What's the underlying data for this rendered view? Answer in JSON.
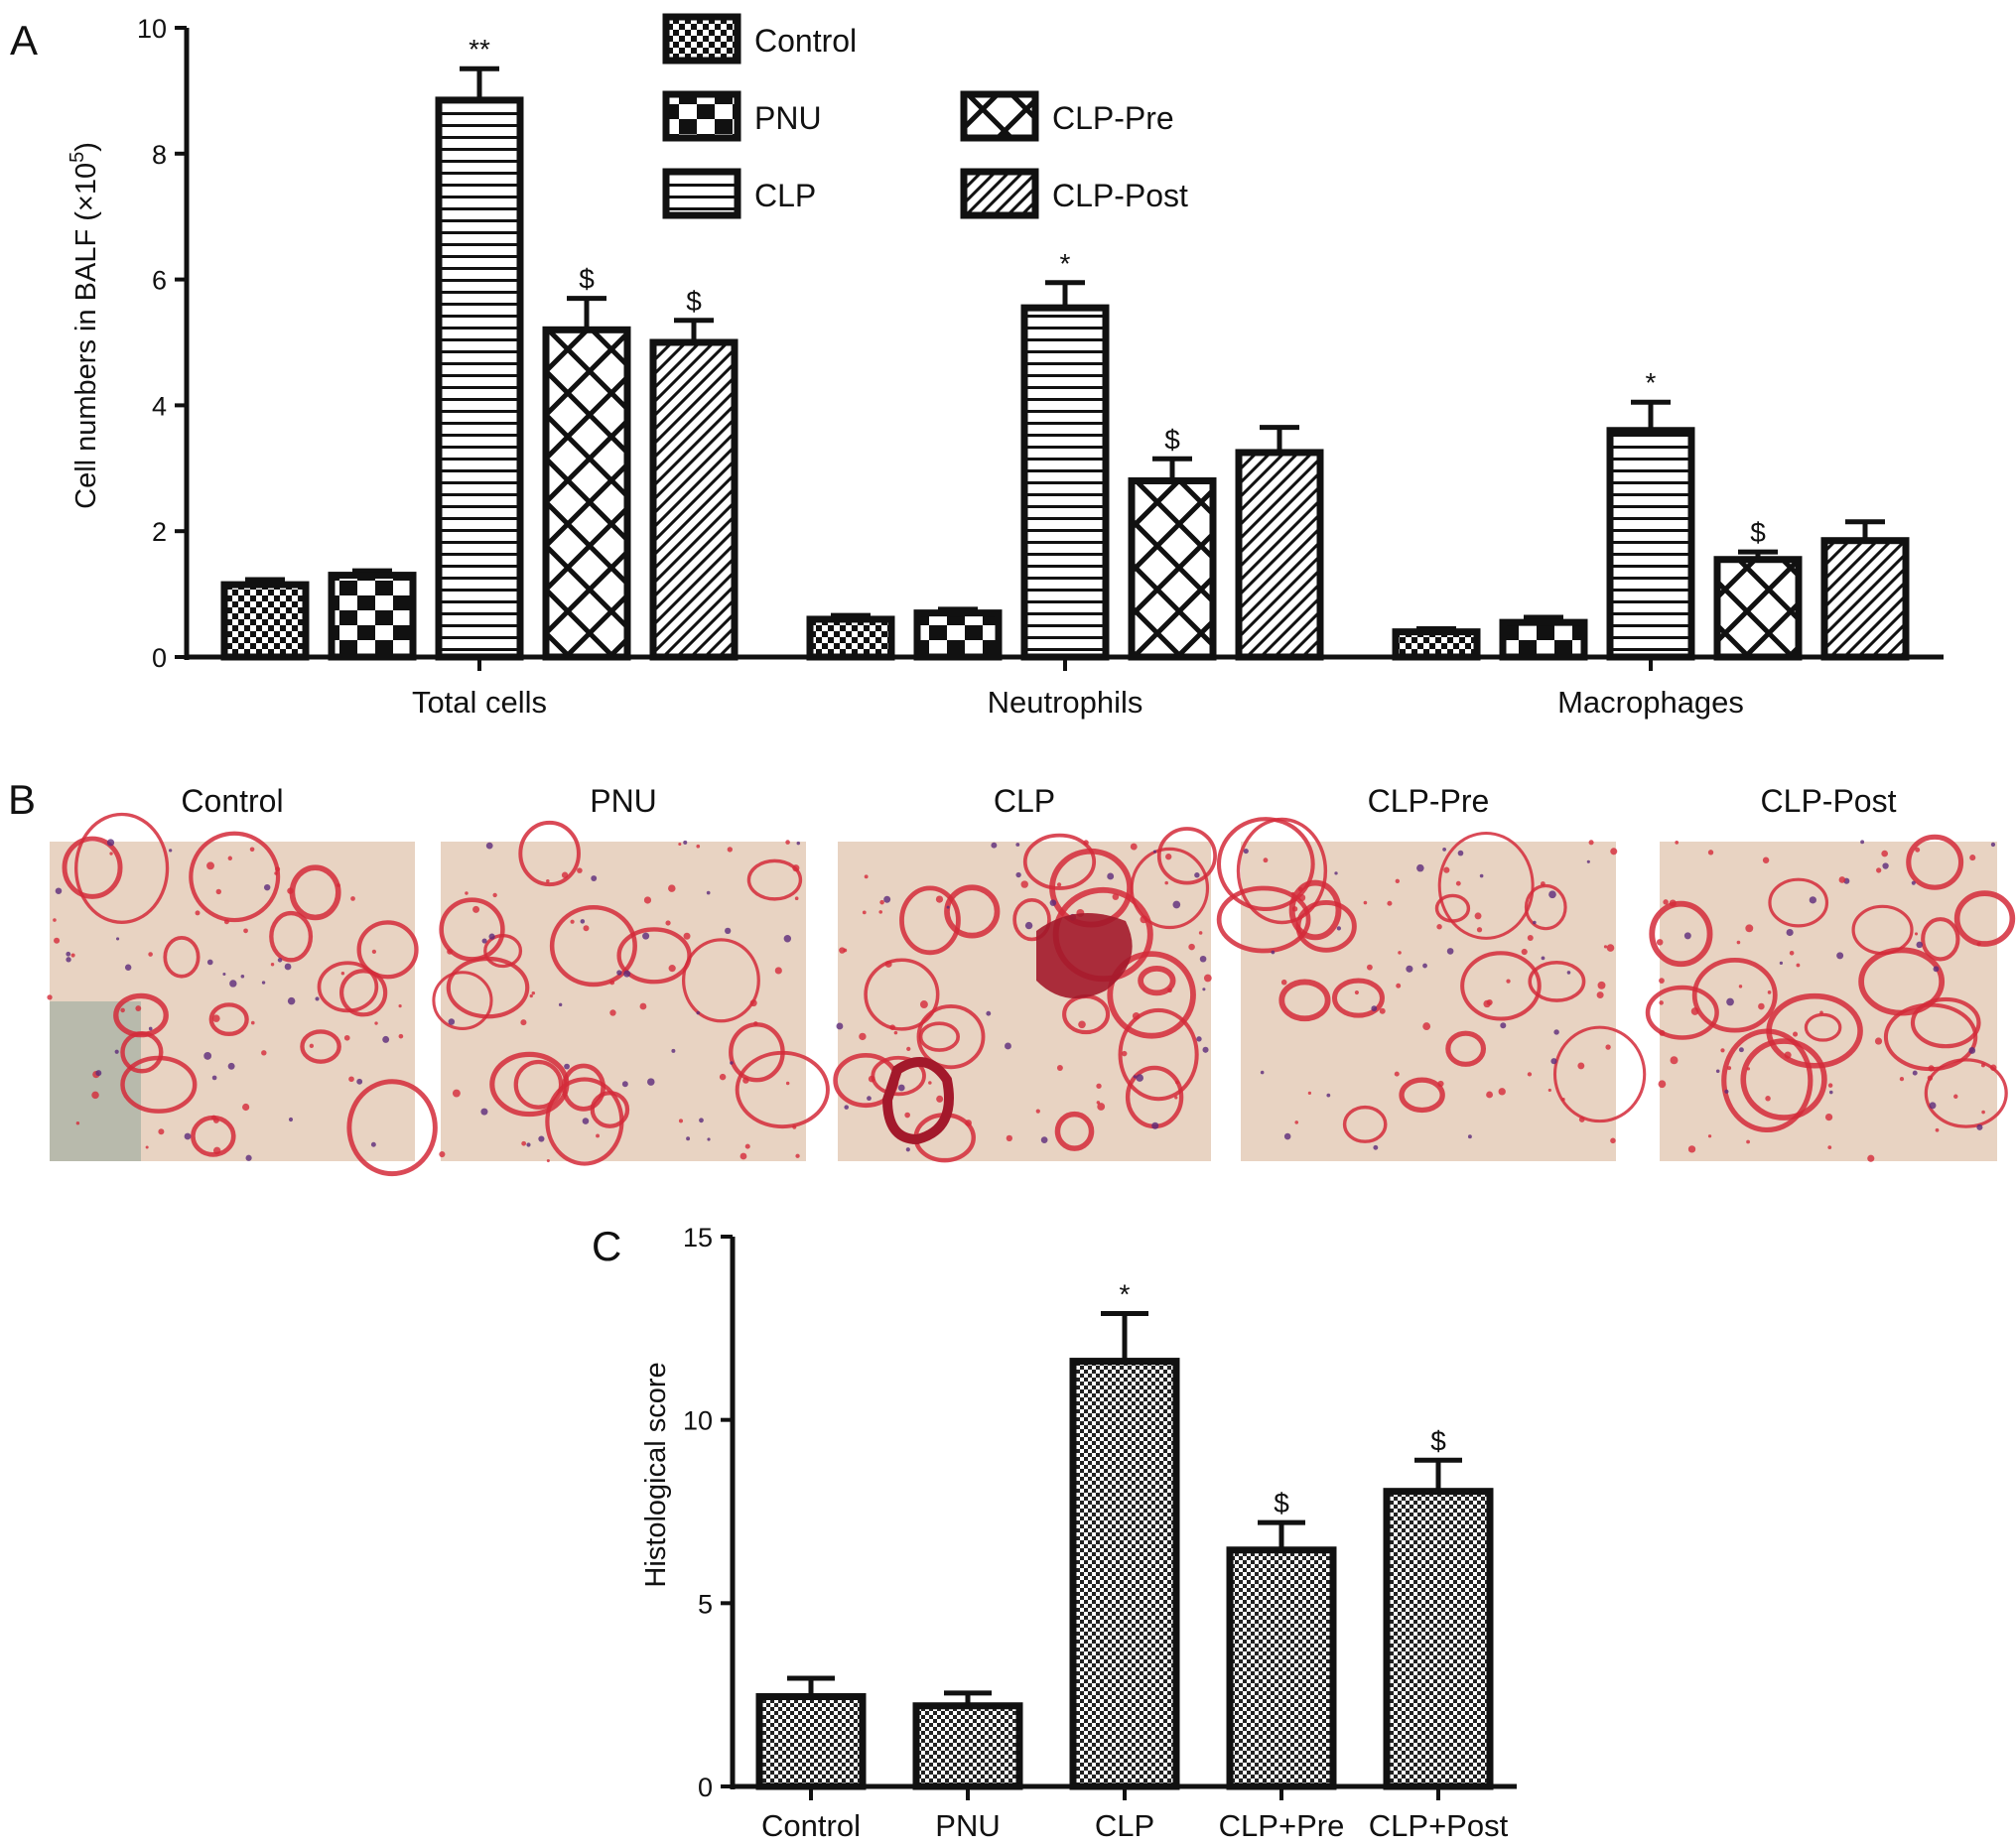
{
  "panels": {
    "a": {
      "letter": "A"
    },
    "b": {
      "letter": "B",
      "images": [
        {
          "title": "Control",
          "tissue": "normal"
        },
        {
          "title": "PNU",
          "tissue": "normal"
        },
        {
          "title": "CLP",
          "tissue": "injured"
        },
        {
          "title": "CLP-Pre",
          "tissue": "mild"
        },
        {
          "title": "CLP-Post",
          "tissue": "mild"
        }
      ]
    },
    "c": {
      "letter": "C"
    }
  },
  "colors": {
    "ink": "#111111",
    "tissue_red": "#d42a3a",
    "tissue_bg": "#e8d3c2"
  },
  "chart_data": [
    {
      "id": "A",
      "type": "bar",
      "ylabel_main": "Cell numbers in BALF (×10",
      "ylabel_exp": "5",
      "ylabel_end": ")",
      "ylim": [
        0,
        10
      ],
      "yticks": [
        0,
        2,
        4,
        6,
        8,
        10
      ],
      "categories": [
        "Total cells",
        "Neutrophils",
        "Macrophages"
      ],
      "legend_placement": "top-center",
      "series": [
        {
          "name": "Control",
          "pattern": "checker",
          "values": [
            1.15,
            0.6,
            0.4
          ],
          "errors": [
            0.08,
            0.06,
            0.05
          ],
          "marks": [
            "",
            "",
            ""
          ]
        },
        {
          "name": "PNU",
          "pattern": "blocks",
          "values": [
            1.3,
            0.7,
            0.55
          ],
          "errors": [
            0.07,
            0.06,
            0.08
          ],
          "marks": [
            "",
            "",
            ""
          ]
        },
        {
          "name": "CLP",
          "pattern": "hlines",
          "values": [
            8.85,
            5.55,
            3.6
          ],
          "errors": [
            0.5,
            0.4,
            0.45
          ],
          "marks": [
            "**",
            "*",
            "*"
          ]
        },
        {
          "name": "CLP-Pre",
          "pattern": "xhatch",
          "values": [
            5.2,
            2.8,
            1.55
          ],
          "errors": [
            0.5,
            0.35,
            0.12
          ],
          "marks": [
            "$",
            "$",
            "$"
          ]
        },
        {
          "name": "CLP-Post",
          "pattern": "diag",
          "values": [
            5.0,
            3.25,
            1.85
          ],
          "errors": [
            0.35,
            0.4,
            0.3
          ],
          "marks": [
            "$",
            "",
            ""
          ]
        }
      ]
    },
    {
      "id": "C",
      "type": "bar",
      "ylabel": "Histological score",
      "ylim": [
        0,
        15
      ],
      "yticks": [
        0,
        5,
        10,
        15
      ],
      "categories": [
        "Control",
        "PNU",
        "CLP",
        "CLP+Pre",
        "CLP+Post"
      ],
      "values": [
        2.45,
        2.2,
        11.6,
        6.45,
        8.05
      ],
      "errors": [
        0.5,
        0.35,
        1.3,
        0.75,
        0.85
      ],
      "marks": [
        "",
        "",
        "*",
        "$",
        "$"
      ]
    }
  ]
}
